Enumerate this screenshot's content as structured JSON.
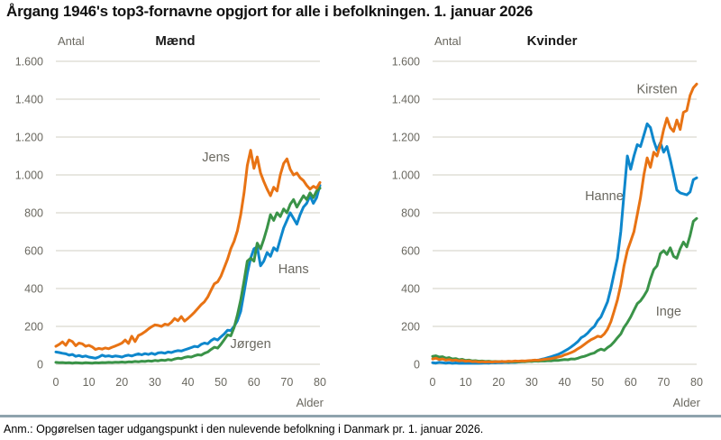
{
  "page": {
    "title": "Årgang 1946's top3-fornavne opgjort for alle i befolkningen. 1. januar 2026",
    "note": "Anm.: Opgørelsen tager udgangspunkt i den nulevende befolkning i Danmark pr. 1. januar 2026."
  },
  "colors": {
    "orange": "#E87314",
    "blue": "#0E87CC",
    "green": "#3A9348",
    "grid": "#E0DFD7",
    "axis_text": "#6A6860",
    "chart_title": "#1A1A1A",
    "divider": "#8EA3AD"
  },
  "chart_data": [
    {
      "type": "line",
      "title": "Mænd",
      "ylabel": "Antal",
      "xlabel": "Alder",
      "xlim": [
        0,
        80
      ],
      "ylim": [
        0,
        1600
      ],
      "x_start": 0,
      "x_step": 1,
      "grid": true,
      "yticks": {
        "values": [
          0,
          200,
          400,
          600,
          800,
          1000,
          1200,
          1400,
          1600
        ],
        "labels": [
          "0",
          "200",
          "400",
          "600",
          "800",
          "1.000",
          "1.200",
          "1.400",
          "1.600"
        ]
      },
      "xticks": {
        "values": [
          0,
          10,
          20,
          30,
          40,
          50,
          60,
          70,
          80
        ],
        "labels": [
          "0",
          "10",
          "20",
          "30",
          "40",
          "50",
          "60",
          "70",
          "80"
        ]
      },
      "series": [
        {
          "name": "Hans",
          "color": "blue",
          "values": [
            65,
            62,
            58,
            55,
            48,
            52,
            42,
            46,
            40,
            44,
            38,
            35,
            32,
            38,
            48,
            42,
            45,
            40,
            44,
            42,
            38,
            45,
            48,
            44,
            50,
            55,
            50,
            56,
            52,
            58,
            52,
            60,
            62,
            58,
            65,
            62,
            68,
            72,
            70,
            76,
            82,
            88,
            95,
            92,
            105,
            112,
            108,
            125,
            135,
            128,
            145,
            160,
            180,
            178,
            200,
            230,
            280,
            380,
            480,
            560,
            610,
            620,
            520,
            545,
            590,
            570,
            615,
            600,
            660,
            720,
            760,
            800,
            770,
            740,
            790,
            830,
            850,
            890,
            850,
            880,
            945
          ]
        },
        {
          "name": "Jørgen",
          "color": "green",
          "values": [
            10,
            8,
            9,
            7,
            8,
            6,
            8,
            7,
            6,
            8,
            7,
            6,
            8,
            7,
            9,
            8,
            10,
            9,
            11,
            10,
            12,
            10,
            13,
            12,
            15,
            13,
            16,
            15,
            18,
            16,
            20,
            18,
            22,
            20,
            25,
            22,
            28,
            32,
            30,
            36,
            40,
            38,
            45,
            50,
            48,
            58,
            65,
            78,
            90,
            85,
            105,
            130,
            155,
            150,
            195,
            260,
            340,
            440,
            545,
            560,
            545,
            640,
            610,
            660,
            720,
            790,
            760,
            800,
            780,
            820,
            800,
            845,
            870,
            830,
            860,
            890,
            870,
            905,
            880,
            915,
            930
          ]
        },
        {
          "name": "Jens",
          "color": "orange",
          "values": [
            95,
            105,
            118,
            100,
            128,
            120,
            98,
            112,
            108,
            95,
            100,
            92,
            78,
            84,
            80,
            86,
            82,
            90,
            96,
            104,
            112,
            128,
            110,
            148,
            120,
            152,
            160,
            172,
            186,
            198,
            208,
            205,
            200,
            212,
            208,
            222,
            242,
            230,
            252,
            228,
            242,
            258,
            275,
            295,
            315,
            330,
            355,
            390,
            425,
            435,
            465,
            510,
            555,
            610,
            650,
            705,
            790,
            905,
            1050,
            1130,
            1035,
            1095,
            1010,
            965,
            925,
            890,
            935,
            915,
            1000,
            1060,
            1085,
            1030,
            1000,
            1010,
            985,
            970,
            945,
            925,
            940,
            930,
            960
          ]
        }
      ],
      "annotations": [
        {
          "text": "Jens",
          "x": 48.5,
          "y": 1095
        },
        {
          "text": "Hans",
          "x": 72,
          "y": 505
        },
        {
          "text": "Jørgen",
          "x": 59,
          "y": 110
        }
      ]
    },
    {
      "type": "line",
      "title": "Kvinder",
      "ylabel": "Antal",
      "xlabel": "Alder",
      "xlim": [
        0,
        80
      ],
      "ylim": [
        0,
        1600
      ],
      "x_start": 0,
      "x_step": 1,
      "grid": true,
      "yticks": {
        "values": [
          0,
          200,
          400,
          600,
          800,
          1000,
          1200,
          1400,
          1600
        ],
        "labels": [
          "0",
          "200",
          "400",
          "600",
          "800",
          "1.000",
          "1.200",
          "1.400",
          "1.600"
        ]
      },
      "xticks": {
        "values": [
          0,
          10,
          20,
          30,
          40,
          50,
          60,
          70,
          80
        ],
        "labels": [
          "0",
          "10",
          "20",
          "30",
          "40",
          "50",
          "60",
          "70",
          "80"
        ]
      },
      "series": [
        {
          "name": "Hanne",
          "color": "blue",
          "values": [
            8,
            6,
            10,
            8,
            6,
            8,
            5,
            7,
            5,
            6,
            5,
            6,
            5,
            6,
            5,
            6,
            7,
            6,
            8,
            7,
            9,
            8,
            10,
            9,
            11,
            10,
            12,
            13,
            14,
            16,
            18,
            20,
            22,
            26,
            30,
            35,
            40,
            46,
            52,
            60,
            70,
            80,
            92,
            105,
            120,
            140,
            150,
            165,
            185,
            200,
            230,
            250,
            290,
            330,
            400,
            480,
            560,
            700,
            900,
            1100,
            1030,
            1100,
            1160,
            1150,
            1210,
            1270,
            1250,
            1180,
            1130,
            1170,
            1120,
            1150,
            1080,
            1000,
            920,
            905,
            900,
            895,
            910,
            975,
            985
          ]
        },
        {
          "name": "Inge",
          "color": "green",
          "values": [
            42,
            45,
            38,
            40,
            32,
            35,
            28,
            30,
            24,
            26,
            20,
            22,
            18,
            19,
            16,
            17,
            15,
            16,
            14,
            15,
            14,
            15,
            13,
            14,
            13,
            14,
            13,
            15,
            14,
            16,
            15,
            17,
            16,
            18,
            17,
            19,
            18,
            21,
            20,
            23,
            25,
            24,
            28,
            27,
            32,
            38,
            42,
            48,
            55,
            60,
            72,
            80,
            74,
            88,
            100,
            118,
            140,
            160,
            195,
            220,
            250,
            285,
            320,
            335,
            360,
            390,
            450,
            500,
            520,
            585,
            600,
            580,
            615,
            570,
            560,
            610,
            645,
            620,
            680,
            755,
            770
          ]
        },
        {
          "name": "Kirsten",
          "color": "orange",
          "values": [
            28,
            32,
            25,
            28,
            22,
            25,
            20,
            22,
            18,
            20,
            16,
            18,
            14,
            15,
            12,
            14,
            12,
            13,
            12,
            14,
            13,
            15,
            14,
            16,
            15,
            17,
            16,
            18,
            17,
            19,
            20,
            22,
            21,
            24,
            26,
            28,
            30,
            34,
            38,
            42,
            50,
            55,
            62,
            70,
            82,
            92,
            105,
            118,
            130,
            138,
            148,
            145,
            160,
            185,
            225,
            280,
            340,
            420,
            520,
            600,
            650,
            700,
            790,
            880,
            1000,
            1090,
            1040,
            1120,
            1100,
            1160,
            1240,
            1300,
            1250,
            1230,
            1290,
            1240,
            1330,
            1340,
            1420,
            1460,
            1480
          ]
        }
      ],
      "annotations": [
        {
          "text": "Kirsten",
          "x": 68,
          "y": 1455
        },
        {
          "text": "Hanne",
          "x": 52,
          "y": 890
        },
        {
          "text": "Inge",
          "x": 71.5,
          "y": 280
        }
      ]
    }
  ]
}
